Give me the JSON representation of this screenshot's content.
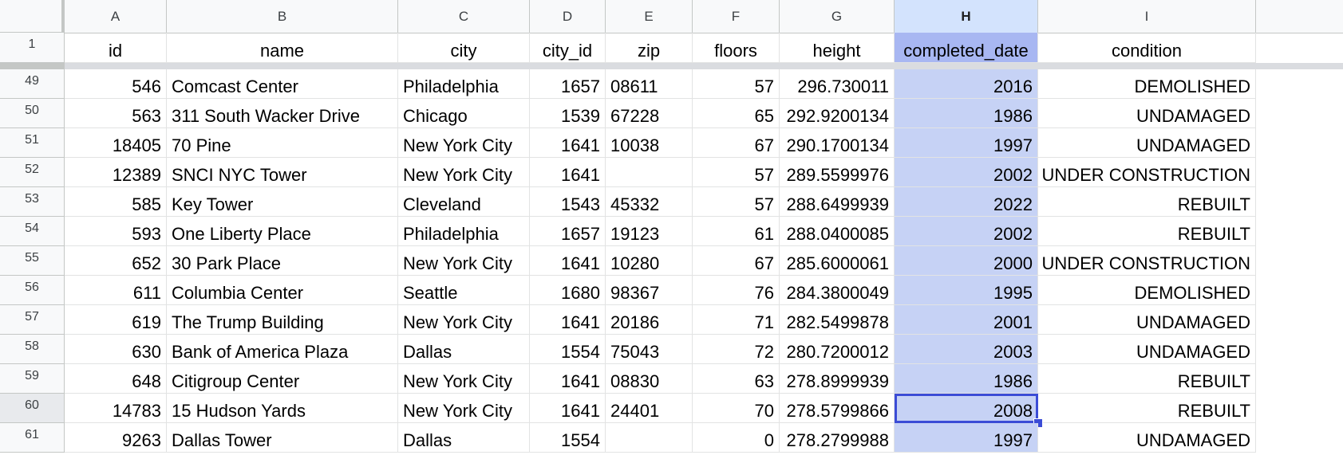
{
  "columns": [
    "A",
    "B",
    "C",
    "D",
    "E",
    "F",
    "G",
    "H",
    "I"
  ],
  "header_row_number": "1",
  "header": [
    "id",
    "name",
    "city",
    "city_id",
    "zip",
    "floors",
    "height",
    "completed_date",
    "condition"
  ],
  "rows": [
    {
      "n": "49",
      "v": [
        "546",
        "Comcast Center",
        "Philadelphia",
        "1657",
        "08611",
        "57",
        "296.730011",
        "2016",
        "DEMOLISHED"
      ]
    },
    {
      "n": "50",
      "v": [
        "563",
        "311 South Wacker Drive",
        "Chicago",
        "1539",
        "67228",
        "65",
        "292.9200134",
        "1986",
        "UNDAMAGED"
      ]
    },
    {
      "n": "51",
      "v": [
        "18405",
        "70 Pine",
        "New York City",
        "1641",
        "10038",
        "67",
        "290.1700134",
        "1997",
        "UNDAMAGED"
      ]
    },
    {
      "n": "52",
      "v": [
        "12389",
        "SNCI NYC Tower",
        "New York City",
        "1641",
        "",
        "57",
        "289.5599976",
        "2002",
        "UNDER CONSTRUCTION"
      ]
    },
    {
      "n": "53",
      "v": [
        "585",
        "Key Tower",
        "Cleveland",
        "1543",
        "45332",
        "57",
        "288.6499939",
        "2022",
        "REBUILT"
      ]
    },
    {
      "n": "54",
      "v": [
        "593",
        "One Liberty Place",
        "Philadelphia",
        "1657",
        "19123",
        "61",
        "288.0400085",
        "2002",
        "REBUILT"
      ]
    },
    {
      "n": "55",
      "v": [
        "652",
        "30 Park Place",
        "New York City",
        "1641",
        "10280",
        "67",
        "285.6000061",
        "2000",
        "UNDER CONSTRUCTION"
      ]
    },
    {
      "n": "56",
      "v": [
        "611",
        "Columbia Center",
        "Seattle",
        "1680",
        "98367",
        "76",
        "284.3800049",
        "1995",
        "DEMOLISHED"
      ]
    },
    {
      "n": "57",
      "v": [
        "619",
        "The Trump Building",
        "New York City",
        "1641",
        "20186",
        "71",
        "282.5499878",
        "2001",
        "UNDAMAGED"
      ]
    },
    {
      "n": "58",
      "v": [
        "630",
        "Bank of America Plaza",
        "Dallas",
        "1554",
        "75043",
        "72",
        "280.7200012",
        "2003",
        "UNDAMAGED"
      ]
    },
    {
      "n": "59",
      "v": [
        "648",
        "Citigroup Center",
        "New York City",
        "1641",
        "08830",
        "63",
        "278.8999939",
        "1986",
        "REBUILT"
      ]
    },
    {
      "n": "60",
      "v": [
        "14783",
        "15 Hudson Yards",
        "New York City",
        "1641",
        "24401",
        "70",
        "278.5799866",
        "2008",
        "REBUILT"
      ]
    },
    {
      "n": "61",
      "v": [
        "9263",
        "Dallas Tower",
        "Dallas",
        "1554",
        "",
        "0",
        "278.2799988",
        "1997",
        "UNDAMAGED"
      ]
    }
  ],
  "selected_column": "H",
  "active_row": "60",
  "colors": {
    "selection_fill": "#c6d2f5",
    "selection_border": "#3b4cd6",
    "header_selected": "#a8b7f2"
  }
}
